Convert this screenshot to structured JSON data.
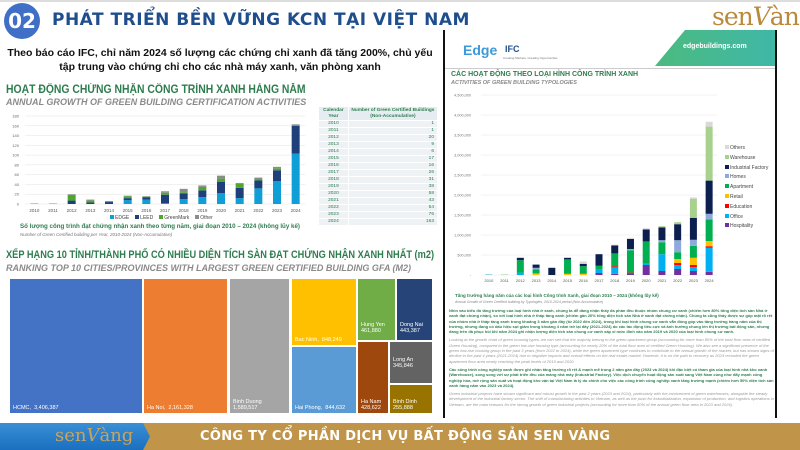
{
  "header": {
    "number": "02",
    "title": "PHÁT TRIỂN BỀN VỮNG KCN TẠI VIỆT NAM",
    "logo": "senvàng"
  },
  "subtitle": "Theo báo cáo IFC, chỉ năm 2024 số lượng các chứng chỉ xanh đã tăng 200%, chủ yếu tập trung vào chứng chỉ cho các nhà máy xanh, văn phòng xanh",
  "left_chart": {
    "title": "HOẠT ĐỘNG CHỨNG NHẬN CÔNG TRÌNH XANH HÀNG NĂM",
    "subtitle": "ANNUAL GROWTH OF GREEN BUILDING CERTIFICATION ACTIVITIES",
    "caption": "Số lượng công trình đạt chứng nhận xanh theo từng năm, giai đoạn 2010 – 2024 (không lũy kế)",
    "caption_en": "Number of Green Certified building per Year, 2010-2024 (Non-Accumulative)"
  },
  "table": {
    "headers": [
      "Calendar Year",
      "Number of Green Certified Buildings (Non-Accumulative)"
    ],
    "rows": [
      [
        "2010",
        "1"
      ],
      [
        "2011",
        "1"
      ],
      [
        "2012",
        "20"
      ],
      [
        "2013",
        "9"
      ],
      [
        "2014",
        "6"
      ],
      [
        "2015",
        "17"
      ],
      [
        "2016",
        "16"
      ],
      [
        "2017",
        "26"
      ],
      [
        "2018",
        "31"
      ],
      [
        "2019",
        "38"
      ],
      [
        "2020",
        "58"
      ],
      [
        "2021",
        "43"
      ],
      [
        "2022",
        "54"
      ],
      [
        "2023",
        "76"
      ],
      [
        "2024",
        "163"
      ]
    ]
  },
  "treemap": {
    "title": "XẾP HẠNG 10 TỈNH/THÀNH PHỐ CÓ NHIỀU DIỆN TÍCH SÀN ĐẠT CHỨNG NHẬN XANH NHẤT (m2)",
    "subtitle": "RANKING TOP 10 CITIES/PROVINCES WITH LARGEST GREEN CERTIFIED BUILDING GFA (M2)",
    "items": [
      {
        "name": "HCMC",
        "value": "3,406,387",
        "color": "#4472c4"
      },
      {
        "name": "Ha Noi",
        "value": "2,161,328",
        "color": "#ed7d31"
      },
      {
        "name": "Binh Duong",
        "value": "1,589,517",
        "color": "#a5a5a5"
      },
      {
        "name": "Bac Ninh",
        "value": "848,249",
        "color": "#ffc000"
      },
      {
        "name": "Hai Phong",
        "value": "844,632",
        "color": "#5b9bd5"
      },
      {
        "name": "Hung Yen",
        "value": "461,880",
        "color": "#70ad47"
      },
      {
        "name": "Dong Nai",
        "value": "443,387",
        "color": "#264478"
      },
      {
        "name": "Ha Nam",
        "value": "428,622",
        "color": "#9e480e"
      },
      {
        "name": "Long An",
        "value": "345,846",
        "color": "#636363"
      },
      {
        "name": "Binh Dinh",
        "value": "255,888",
        "color": "#997300"
      }
    ]
  },
  "right_panel": {
    "edge_logo": "Edge",
    "ifc_logo": "IFC",
    "ifc_tagline": "Creating Markets, Creating Opportunities",
    "url": "edgebuildings.com",
    "title": "CÁC HOẠT ĐỘNG THEO LOẠI HÌNH CÔNG TRÌNH XANH",
    "subtitle": "ACTIVITIES OF GREEN BUILDING TYPOLOGIES",
    "caption": "Tăng trưởng hàng năm của các loại hình Công trình Xanh, giai đoạn 2010 – 2024 (không lũy kế)",
    "caption_en": "Annual Growth of Green Certified building by Typologies, 2010-2024 period (Non-Accumulative)",
    "para1": "Nhìn vào biểu đồ tăng trưởng của loại hình nhà ở xanh, chúng ta dễ dàng nhận thấy đa phần đều thuộc nhóm chung cư xanh (chiếm hơn 80% tổng diện tích sàn Nhà ở xanh đạt chứng nhận), so với loại hình nhà ở thấp tầng xanh (chiếm gần 20% tổng diện tích sàn Nhà ở xanh đạt chứng nhận). Chúng ta cũng thấy được sự góp mặt rõ rệt của nhóm nhà ở thấp tầng xanh trong khoảng 3 năm gần đây (từ 2022 đến 2024), trong khi loại hình chung cư xanh vẫn đóng góp vào tăng trưởng hàng năm của thị trường, nhưng đang có dấu hiệu sụt giảm trong khoảng 4 năm trở lại đây (2021-2024) do các tác động tiêu cực và ảnh hưởng chung lên thị trường bất động sản, nhưng đang trên đà phục hồi khi năm 2024 ghi nhận lượng diện tích sàn chung cư xanh xấp xỉ mức đỉnh vào năm 2019 và 2020 của loại hình chung cư xanh.",
    "para1_en": "Looking at the growth chart of green housing types, we can see that the majority belong to the green apartment group (accounting for more than 80% of the total floor area of certified Green Housing), compared to the green low-rise housing type (accounting for nearly 20% of the total floor area of certified Green Housing). We also see a significant presence of the green low-rise housing group in the past 3 years (from 2022 to 2024), while the green apartment type continues to contribute to the annual growth of the market, but has shown signs of decline in the past 4 years (2021-2024) due to negative impacts and overall effects on the real estate market. However, it is on the path to recovery as 2024 recorded the green apartment floor area nearly reaching the peak levels of 2019 and 2020.",
    "para2": "Các công trình công nghiệp xanh được ghi nhận tăng trưởng rõ rệt & mạnh mẽ trong 2 năm gần đây (2023 và 2024) khi đặc biệt có tham gia của loại hình nhà kho xanh (Warehouse), song song với sự phát triển đều của mảng nhà máy (Industrial Factory). Việc dịch chuyển hoạt động sản xuất sang Việt Nam cùng như đẩy mạnh công nghiệp hóa, mở rộng sản xuất và hoạt động kho vận tại Việt Nam là lý do chính cho việc các công trình công nghiệp xanh tăng trưởng mạnh (chiếm hơn 50% diện tích sàn xanh hàng năm vào 2023 và 2024).",
    "para2_en": "Green industrial projects have shown significant and robust growth in the past 2 years (2023 and 2024), particularly with the involvement of green warehouses, alongside the steady development of the industrial factory sector. The shift of manufacturing activities to Vietnam, as well as the push for industrialization, expansion of production, and logistics operations in Vietnam, are the main reasons for the strong growth of green industrial projects (accounting for more than 50% of the annual green floor area in 2023 and 2024)."
  },
  "footer": {
    "logo": "senvàng",
    "company": "CÔNG TY CỔ PHẦN DỊCH VỤ BẤT ĐỘNG SẢN SEN VÀNG"
  },
  "chart_data": [
    {
      "type": "bar",
      "stacked": true,
      "categories": [
        "2010",
        "2011",
        "2012",
        "2013",
        "2014",
        "2015",
        "2016",
        "2017",
        "2018",
        "2019",
        "2020",
        "2021",
        "2022",
        "2023",
        "2024"
      ],
      "ylim": [
        0,
        180
      ],
      "yticks": [
        0,
        20,
        40,
        60,
        80,
        100,
        120,
        140,
        160,
        180
      ],
      "grid": true,
      "legend": "bottom",
      "series": [
        {
          "name": "EDGE",
          "color": "#0f9ed5",
          "values": [
            0,
            0,
            0,
            0,
            0,
            8,
            9,
            2,
            10,
            14,
            22,
            12,
            32,
            47,
            103
          ]
        },
        {
          "name": "LEED",
          "color": "#1f3f7a",
          "values": [
            0,
            0,
            7,
            3,
            4,
            4,
            5,
            17,
            12,
            14,
            23,
            21,
            16,
            22,
            57
          ]
        },
        {
          "name": "GreenMark",
          "color": "#4ea72e",
          "values": [
            0,
            0,
            12,
            4,
            0,
            4,
            1,
            4,
            2,
            7,
            7,
            8,
            3,
            4,
            0
          ]
        },
        {
          "name": "Other",
          "color": "#8c8c8c",
          "values": [
            1,
            1,
            1,
            2,
            2,
            1,
            1,
            3,
            7,
            3,
            6,
            2,
            3,
            3,
            3
          ]
        }
      ]
    },
    {
      "type": "bar",
      "stacked": true,
      "categories": [
        "2010",
        "2011",
        "2012",
        "2013",
        "2014",
        "2015",
        "2016",
        "2017",
        "2018",
        "2019",
        "2020",
        "2021",
        "2022",
        "2023",
        "2024"
      ],
      "ylim": [
        0,
        4500000
      ],
      "yticks": [
        "-",
        "500,000",
        "1,000,000",
        "1,500,000",
        "2,000,000",
        "2,500,000",
        "3,000,000",
        "3,500,000",
        "4,000,000",
        "4,500,000"
      ],
      "grid": true,
      "legend": "right",
      "series": [
        {
          "name": "Hospitality",
          "color": "#7030a0",
          "values": [
            0,
            0,
            0,
            0,
            0,
            0,
            0,
            50000,
            30000,
            30000,
            250000,
            100000,
            150000,
            100000,
            80000
          ]
        },
        {
          "name": "Office",
          "color": "#00b0f0",
          "values": [
            10000,
            0,
            60000,
            0,
            0,
            0,
            0,
            100000,
            160000,
            0,
            50000,
            420000,
            100000,
            100000,
            600000
          ]
        },
        {
          "name": "Education",
          "color": "#ff0000",
          "values": [
            0,
            0,
            0,
            0,
            0,
            0,
            0,
            0,
            30000,
            30000,
            0,
            0,
            50000,
            50000,
            40000
          ]
        },
        {
          "name": "Retail",
          "color": "#ffc000",
          "values": [
            0,
            0,
            0,
            40000,
            0,
            30000,
            30000,
            0,
            0,
            0,
            0,
            0,
            100000,
            180000,
            130000
          ]
        },
        {
          "name": "Apartment",
          "color": "#00b050",
          "values": [
            0,
            0,
            310000,
            100000,
            0,
            360000,
            190000,
            80000,
            320000,
            560000,
            540000,
            300000,
            170000,
            300000,
            540000
          ]
        },
        {
          "name": "Homes",
          "color": "#8eaadb",
          "values": [
            0,
            0,
            0,
            40000,
            0,
            0,
            0,
            0,
            0,
            30000,
            0,
            50000,
            300000,
            150000,
            140000
          ]
        },
        {
          "name": "Industrial Factory",
          "color": "#0c1f4f",
          "values": [
            0,
            0,
            60000,
            80000,
            180000,
            40000,
            60000,
            290000,
            200000,
            250000,
            300000,
            320000,
            400000,
            550000,
            830000
          ]
        },
        {
          "name": "Warehouse",
          "color": "#a9d18e",
          "values": [
            0,
            15000,
            0,
            0,
            0,
            0,
            0,
            0,
            0,
            0,
            0,
            30000,
            50000,
            470000,
            1350000
          ]
        },
        {
          "name": "Others",
          "color": "#d9d9d9",
          "values": [
            10000,
            0,
            0,
            0,
            0,
            0,
            60000,
            0,
            20000,
            30000,
            30000,
            0,
            0,
            40000,
            120000
          ]
        }
      ]
    }
  ]
}
